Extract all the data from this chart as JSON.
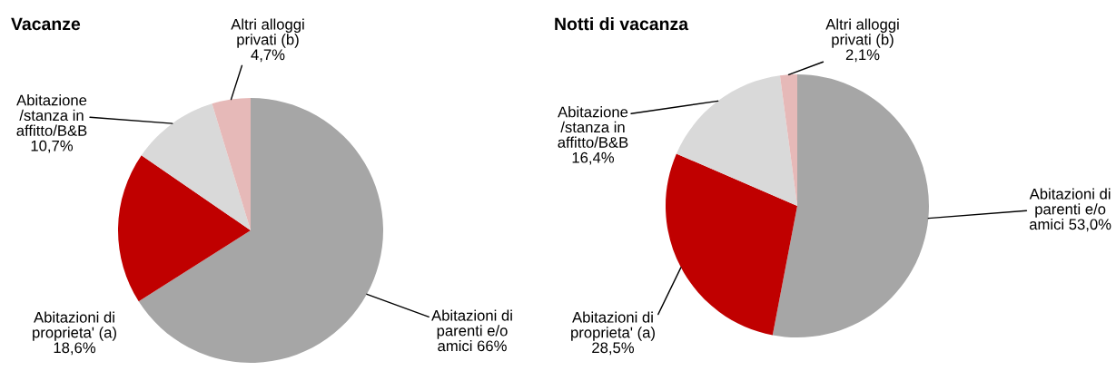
{
  "chart_data": [
    {
      "type": "pie",
      "title": "Vacanze",
      "categories": [
        "Abitazioni di\nparenti e/o\namici",
        "Abitazioni di\nproprieta' (a)",
        "Abitazione\n/stanza in\naffitto/B&B",
        "Altri alloggi\nprivati (b)"
      ],
      "values": [
        66,
        18.6,
        10.7,
        4.7
      ],
      "colors": [
        "#a6a6a6",
        "#c00000",
        "#d9d9d9",
        "#e6b9b8"
      ],
      "value_labels": [
        "66%",
        "18,6%",
        "10,7%",
        "4,7%"
      ]
    },
    {
      "type": "pie",
      "title": "Notti di vacanza",
      "categories": [
        "Abitazioni di\nparenti e/o\namici",
        "Abitazioni di\nproprieta' (a)",
        "Abitazione\n/stanza in\naffitto/B&B",
        "Altri alloggi\nprivati (b)"
      ],
      "values": [
        53.0,
        28.5,
        16.4,
        2.1
      ],
      "colors": [
        "#a6a6a6",
        "#c00000",
        "#d9d9d9",
        "#e6b9b8"
      ],
      "value_labels": [
        "53,0%",
        "28,5%",
        "16,4%",
        "2,1%"
      ]
    }
  ]
}
